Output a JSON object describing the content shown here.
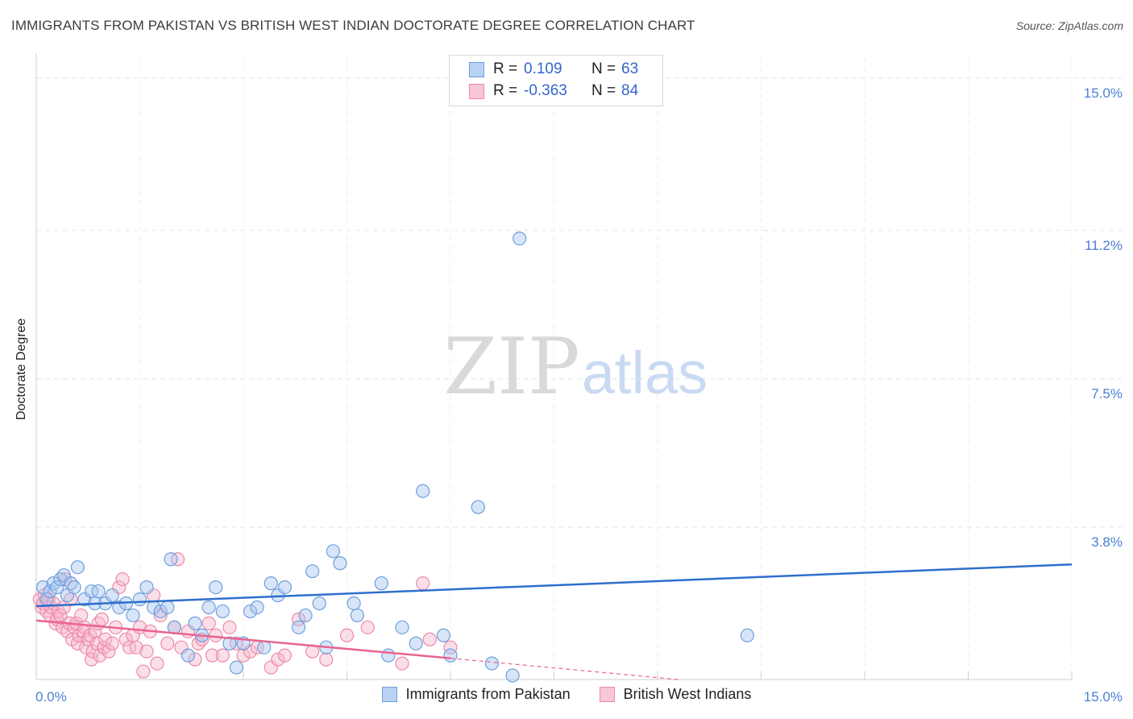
{
  "header": {
    "title": "IMMIGRANTS FROM PAKISTAN VS BRITISH WEST INDIAN DOCTORATE DEGREE CORRELATION CHART",
    "source": "Source: ZipAtlas.com"
  },
  "watermark": {
    "zip": "ZIP",
    "atlas": "atlas"
  },
  "legend": {
    "rows": [
      {
        "r_label": "R =",
        "r_value": "0.109",
        "n_label": "N =",
        "n_value": "63"
      },
      {
        "r_label": "R =",
        "r_value": "-0.363",
        "n_label": "N =",
        "n_value": "84"
      }
    ]
  },
  "colors": {
    "blue_fill": "#a9c6ef",
    "blue_stroke": "#6e9fdc",
    "blue_line": "#2f6fcd",
    "pink_fill": "#f7b8cb",
    "pink_stroke": "#ee8aa9",
    "pink_line": "#e8648f",
    "tick_label": "#4a7fd4",
    "grid": "#e3e3e3"
  },
  "chart_data": {
    "type": "scatter",
    "title": "IMMIGRANTS FROM PAKISTAN VS BRITISH WEST INDIAN DOCTORATE DEGREE CORRELATION CHART",
    "xlabel": "",
    "ylabel": "Doctorate Degree",
    "xlim": [
      0,
      15
    ],
    "ylim": [
      0,
      15.5
    ],
    "x_tick_labels": [
      "0.0%",
      "15.0%"
    ],
    "y_ticks": [
      3.8,
      7.5,
      11.2,
      15.0
    ],
    "y_tick_labels": [
      "3.8%",
      "7.5%",
      "11.2%",
      "15.0%"
    ],
    "grid": true,
    "legend_position": "top-center",
    "series": [
      {
        "name": "Immigrants from Pakistan",
        "r": 0.109,
        "n": 63,
        "trend": {
          "x": [
            0,
            15
          ],
          "y": [
            1.83,
            2.87
          ]
        },
        "points": [
          [
            0.1,
            2.3
          ],
          [
            0.15,
            2.0
          ],
          [
            0.2,
            2.2
          ],
          [
            0.25,
            2.4
          ],
          [
            0.3,
            2.3
          ],
          [
            0.35,
            2.5
          ],
          [
            0.4,
            2.6
          ],
          [
            0.45,
            2.1
          ],
          [
            0.5,
            2.4
          ],
          [
            0.55,
            2.3
          ],
          [
            0.6,
            2.8
          ],
          [
            0.7,
            2.0
          ],
          [
            0.8,
            2.2
          ],
          [
            0.85,
            1.9
          ],
          [
            0.9,
            2.2
          ],
          [
            1.0,
            1.9
          ],
          [
            1.1,
            2.1
          ],
          [
            1.2,
            1.8
          ],
          [
            1.3,
            1.9
          ],
          [
            1.4,
            1.6
          ],
          [
            1.5,
            2.0
          ],
          [
            1.6,
            2.3
          ],
          [
            1.7,
            1.8
          ],
          [
            1.8,
            1.7
          ],
          [
            1.9,
            1.8
          ],
          [
            1.95,
            3.0
          ],
          [
            2.0,
            1.3
          ],
          [
            2.2,
            0.6
          ],
          [
            2.3,
            1.4
          ],
          [
            2.4,
            1.1
          ],
          [
            2.5,
            1.8
          ],
          [
            2.6,
            2.3
          ],
          [
            2.7,
            1.7
          ],
          [
            2.8,
            0.9
          ],
          [
            2.9,
            0.3
          ],
          [
            3.0,
            0.9
          ],
          [
            3.1,
            1.7
          ],
          [
            3.2,
            1.8
          ],
          [
            3.3,
            0.8
          ],
          [
            3.4,
            2.4
          ],
          [
            3.5,
            2.1
          ],
          [
            3.6,
            2.3
          ],
          [
            3.8,
            1.3
          ],
          [
            3.9,
            1.6
          ],
          [
            4.0,
            2.7
          ],
          [
            4.1,
            1.9
          ],
          [
            4.2,
            0.8
          ],
          [
            4.3,
            3.2
          ],
          [
            4.4,
            2.9
          ],
          [
            4.6,
            1.9
          ],
          [
            4.65,
            1.6
          ],
          [
            5.0,
            2.4
          ],
          [
            5.1,
            0.6
          ],
          [
            5.3,
            1.3
          ],
          [
            5.5,
            0.9
          ],
          [
            5.6,
            4.7
          ],
          [
            5.9,
            1.1
          ],
          [
            6.0,
            0.6
          ],
          [
            6.4,
            4.3
          ],
          [
            6.6,
            0.4
          ],
          [
            6.9,
            0.1
          ],
          [
            7.0,
            11.0
          ],
          [
            10.3,
            1.1
          ]
        ]
      },
      {
        "name": "British West Indians",
        "r": -0.363,
        "n": 84,
        "trend": {
          "x": [
            0,
            6.0
          ],
          "y": [
            1.47,
            0.53
          ]
        },
        "trend_dashed": {
          "x": [
            6.0,
            9.3
          ],
          "y": [
            0.53,
            0.0
          ]
        },
        "points": [
          [
            0.05,
            2.0
          ],
          [
            0.08,
            1.8
          ],
          [
            0.1,
            1.9
          ],
          [
            0.12,
            2.1
          ],
          [
            0.15,
            1.7
          ],
          [
            0.18,
            2.0
          ],
          [
            0.2,
            1.6
          ],
          [
            0.22,
            1.8
          ],
          [
            0.25,
            1.9
          ],
          [
            0.28,
            1.4
          ],
          [
            0.3,
            1.5
          ],
          [
            0.32,
            1.7
          ],
          [
            0.35,
            1.6
          ],
          [
            0.38,
            1.3
          ],
          [
            0.4,
            1.8
          ],
          [
            0.42,
            2.5
          ],
          [
            0.45,
            1.2
          ],
          [
            0.48,
            1.4
          ],
          [
            0.5,
            2.0
          ],
          [
            0.52,
            1.0
          ],
          [
            0.55,
            1.3
          ],
          [
            0.58,
            1.4
          ],
          [
            0.6,
            0.9
          ],
          [
            0.62,
            1.1
          ],
          [
            0.65,
            1.6
          ],
          [
            0.68,
            1.2
          ],
          [
            0.7,
            1.3
          ],
          [
            0.72,
            0.8
          ],
          [
            0.75,
            1.0
          ],
          [
            0.78,
            1.1
          ],
          [
            0.8,
            0.5
          ],
          [
            0.82,
            0.7
          ],
          [
            0.85,
            1.2
          ],
          [
            0.88,
            0.9
          ],
          [
            0.9,
            1.4
          ],
          [
            0.92,
            0.6
          ],
          [
            0.95,
            1.5
          ],
          [
            0.98,
            0.8
          ],
          [
            1.0,
            1.0
          ],
          [
            1.05,
            0.7
          ],
          [
            1.1,
            0.9
          ],
          [
            1.15,
            1.3
          ],
          [
            1.2,
            2.3
          ],
          [
            1.25,
            2.5
          ],
          [
            1.3,
            1.0
          ],
          [
            1.35,
            0.8
          ],
          [
            1.4,
            1.1
          ],
          [
            1.45,
            0.8
          ],
          [
            1.5,
            1.3
          ],
          [
            1.55,
            0.2
          ],
          [
            1.6,
            0.7
          ],
          [
            1.65,
            1.2
          ],
          [
            1.7,
            2.1
          ],
          [
            1.75,
            0.4
          ],
          [
            1.8,
            1.6
          ],
          [
            1.9,
            0.9
          ],
          [
            2.0,
            1.3
          ],
          [
            2.05,
            3.0
          ],
          [
            2.1,
            0.8
          ],
          [
            2.2,
            1.2
          ],
          [
            2.3,
            0.5
          ],
          [
            2.35,
            0.9
          ],
          [
            2.4,
            1.0
          ],
          [
            2.5,
            1.4
          ],
          [
            2.55,
            0.6
          ],
          [
            2.6,
            1.1
          ],
          [
            2.7,
            0.6
          ],
          [
            2.8,
            1.3
          ],
          [
            2.9,
            0.9
          ],
          [
            3.0,
            0.6
          ],
          [
            3.1,
            0.7
          ],
          [
            3.2,
            0.8
          ],
          [
            3.4,
            0.3
          ],
          [
            3.5,
            0.5
          ],
          [
            3.6,
            0.6
          ],
          [
            3.8,
            1.5
          ],
          [
            4.0,
            0.7
          ],
          [
            4.2,
            0.5
          ],
          [
            4.5,
            1.1
          ],
          [
            4.8,
            1.3
          ],
          [
            5.3,
            0.4
          ],
          [
            5.6,
            2.4
          ],
          [
            5.7,
            1.0
          ],
          [
            6.0,
            0.8
          ]
        ]
      }
    ]
  }
}
